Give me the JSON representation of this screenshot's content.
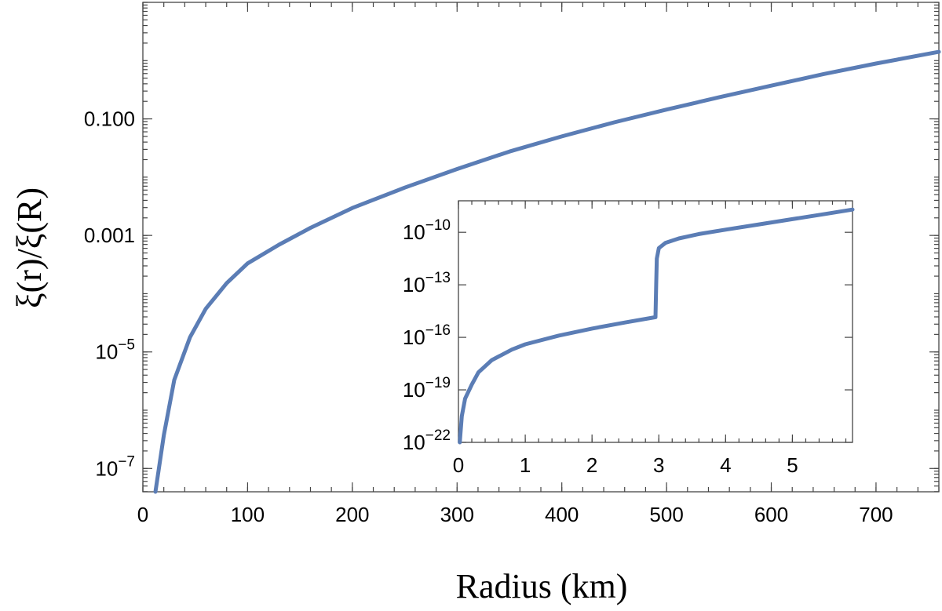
{
  "chart_data": [
    {
      "type": "line",
      "role": "main",
      "xlabel": "Radius (km)",
      "ylabel": "ξ(r)/ξ(R)",
      "xlim": [
        0,
        760
      ],
      "ylim_log10": [
        -7.4,
        1.0
      ],
      "y_scale": "log",
      "x_ticks": [
        0,
        100,
        200,
        300,
        400,
        500,
        600,
        700
      ],
      "x_tick_labels": [
        "0",
        "100",
        "200",
        "300",
        "400",
        "500",
        "600",
        "700"
      ],
      "y_ticks_log10": [
        -1,
        -3,
        -5,
        -7
      ],
      "y_tick_labels": [
        {
          "base": "0.100",
          "exp": ""
        },
        {
          "base": "0.001",
          "exp": ""
        },
        {
          "base": "10",
          "exp": "−5"
        },
        {
          "base": "10",
          "exp": "−7"
        }
      ],
      "series": [
        {
          "color": "#5b7db5",
          "x": [
            12,
            20,
            30,
            45,
            60,
            80,
            100,
            130,
            160,
            200,
            250,
            300,
            350,
            400,
            450,
            500,
            550,
            600,
            650,
            700,
            760
          ],
          "log10_y": [
            -7.4,
            -6.43,
            -5.48,
            -4.75,
            -4.26,
            -3.82,
            -3.48,
            -3.16,
            -2.87,
            -2.53,
            -2.18,
            -1.86,
            -1.56,
            -1.3,
            -1.06,
            -0.84,
            -0.63,
            -0.43,
            -0.23,
            -0.05,
            0.15
          ]
        }
      ]
    },
    {
      "type": "line",
      "role": "inset",
      "xlim": [
        0,
        5.9
      ],
      "ylim_log10": [
        -22,
        -8.2
      ],
      "y_scale": "log",
      "x_ticks": [
        0,
        1,
        2,
        3,
        4,
        5
      ],
      "x_tick_labels": [
        "0",
        "1",
        "2",
        "3",
        "4",
        "5"
      ],
      "y_ticks_log10": [
        -10,
        -13,
        -16,
        -19,
        -22
      ],
      "y_tick_labels": [
        {
          "base": "10",
          "exp": "−10"
        },
        {
          "base": "10",
          "exp": "−13"
        },
        {
          "base": "10",
          "exp": "−16"
        },
        {
          "base": "10",
          "exp": "−19"
        },
        {
          "base": "10",
          "exp": "−22"
        }
      ],
      "series": [
        {
          "color": "#5b7db5",
          "x": [
            0.02,
            0.05,
            0.1,
            0.2,
            0.3,
            0.5,
            0.8,
            1.0,
            1.5,
            2.0,
            2.5,
            2.95,
            2.96,
            2.97,
            3.0,
            3.1,
            3.3,
            3.6,
            4.0,
            4.5,
            5.0,
            5.5,
            5.9
          ],
          "log10_y": [
            -22.0,
            -20.5,
            -19.5,
            -18.7,
            -18.0,
            -17.3,
            -16.7,
            -16.4,
            -15.9,
            -15.5,
            -15.15,
            -14.85,
            -13.0,
            -11.5,
            -10.9,
            -10.6,
            -10.35,
            -10.1,
            -9.85,
            -9.55,
            -9.25,
            -8.95,
            -8.7
          ]
        }
      ]
    }
  ]
}
